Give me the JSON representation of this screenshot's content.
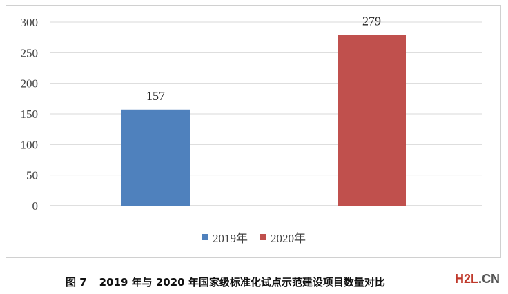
{
  "chart_data": {
    "type": "bar",
    "categories": [
      "2019年",
      "2020年"
    ],
    "values": [
      157,
      279
    ],
    "series_colors": [
      "#4f81bd",
      "#c0504d"
    ],
    "data_labels": [
      "157",
      "279"
    ],
    "yticks": [
      "0",
      "50",
      "100",
      "150",
      "200",
      "250",
      "300"
    ],
    "ylim": [
      0,
      300
    ],
    "ytick_step": 50,
    "grid": true,
    "legend_position": "bottom",
    "title": "",
    "xlabel": "",
    "ylabel": ""
  },
  "legend": {
    "items": [
      {
        "label": "2019年",
        "color": "#4f81bd"
      },
      {
        "label": "2020年",
        "color": "#c0504d"
      }
    ]
  },
  "caption": {
    "figure_number": "图 7",
    "text": "2019 年与 2020 年国家级标准化试点示范建设项目数量对比"
  },
  "watermark": {
    "main": "H2L",
    "domain": ".CN"
  }
}
